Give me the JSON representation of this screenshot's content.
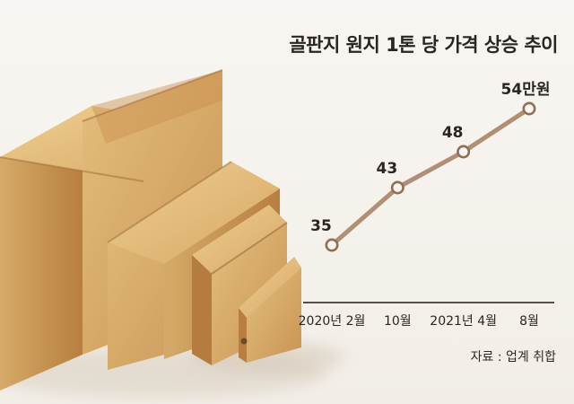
{
  "chart_data": {
    "type": "line",
    "title": "골판지 원지 1톤 당 가격 상승 추이",
    "categories": [
      "2020년 2월",
      "10월",
      "2021년 4월",
      "8월"
    ],
    "values": [
      35,
      43,
      48,
      54
    ],
    "value_labels": [
      "35",
      "43",
      "48",
      "54만원"
    ],
    "ylim": [
      31,
      56
    ],
    "grid": false,
    "source": "자료 : 업계 취합",
    "colors": {
      "line": "#b08f74",
      "marker_fill": "#f8f4ef",
      "marker_stroke": "#8e6f58",
      "axis": "#403934",
      "text": "#2b2522"
    }
  }
}
